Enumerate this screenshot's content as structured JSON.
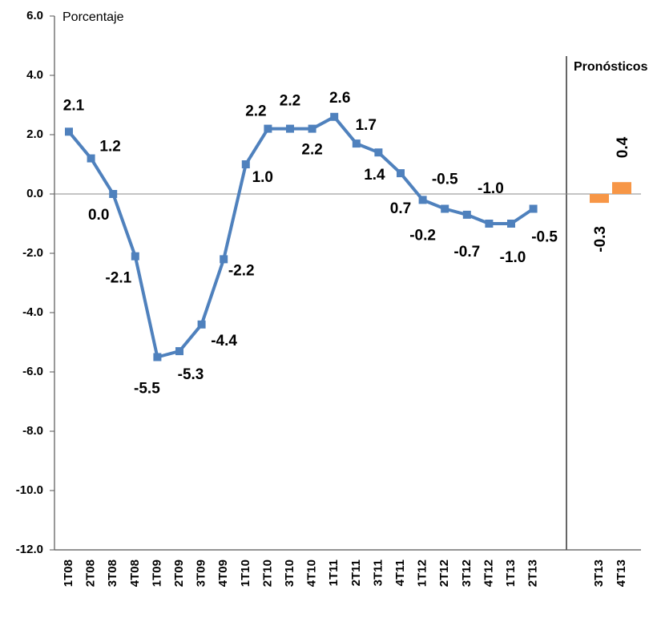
{
  "chart_data": {
    "type": "line",
    "y_axis_label": "Porcentaje",
    "annotation": "Pronósticos",
    "categories": [
      "1T08",
      "2T08",
      "3T08",
      "4T08",
      "1T09",
      "2T09",
      "3T09",
      "4T09",
      "1T10",
      "2T10",
      "3T10",
      "4T10",
      "1T11",
      "2T11",
      "3T11",
      "4T11",
      "1T12",
      "2T12",
      "3T12",
      "4T12",
      "1T13",
      "2T13",
      "3T13",
      "4T13"
    ],
    "series": [
      {
        "type": "line",
        "color": "#4f81bd",
        "values": [
          2.1,
          1.2,
          0.0,
          -2.1,
          -5.5,
          -5.3,
          -4.4,
          -2.2,
          1.0,
          2.2,
          2.2,
          2.2,
          2.6,
          1.7,
          1.4,
          0.7,
          -0.2,
          -0.5,
          -0.7,
          -1.0,
          -1.0,
          -0.5,
          null,
          null
        ],
        "value_labels": [
          "2.1",
          "1.2",
          "0.0",
          "-2.1",
          "-5.5",
          "-5.3",
          "-4.4",
          "-2.2",
          "1.0",
          "2.2",
          "2.2",
          "2.2",
          "2.6",
          "1.7",
          "1.4",
          "0.7",
          "-0.2",
          "-0.5",
          "-0.7",
          "-1.0",
          "-1.0",
          "-0.5",
          null,
          null
        ]
      },
      {
        "type": "bar",
        "color": "#f79646",
        "values": [
          null,
          null,
          null,
          null,
          null,
          null,
          null,
          null,
          null,
          null,
          null,
          null,
          null,
          null,
          null,
          null,
          null,
          null,
          null,
          null,
          null,
          null,
          -0.3,
          0.4
        ],
        "value_labels": [
          null,
          null,
          null,
          null,
          null,
          null,
          null,
          null,
          null,
          null,
          null,
          null,
          null,
          null,
          null,
          null,
          null,
          null,
          null,
          null,
          null,
          null,
          "-0.3",
          "0.4"
        ]
      }
    ],
    "ylim": [
      -12,
      6
    ],
    "yticks": [
      {
        "value": -12,
        "label": "-12.0"
      },
      {
        "value": -10,
        "label": "-10.0"
      },
      {
        "value": -8,
        "label": "-8.0"
      },
      {
        "value": -6,
        "label": "-6.0"
      },
      {
        "value": -4,
        "label": "-4.0"
      },
      {
        "value": -2,
        "label": "-2.0"
      },
      {
        "value": 0,
        "label": "0.0"
      },
      {
        "value": 2,
        "label": "2.0"
      },
      {
        "value": 4,
        "label": "4.0"
      },
      {
        "value": 6,
        "label": "6.0"
      }
    ]
  }
}
